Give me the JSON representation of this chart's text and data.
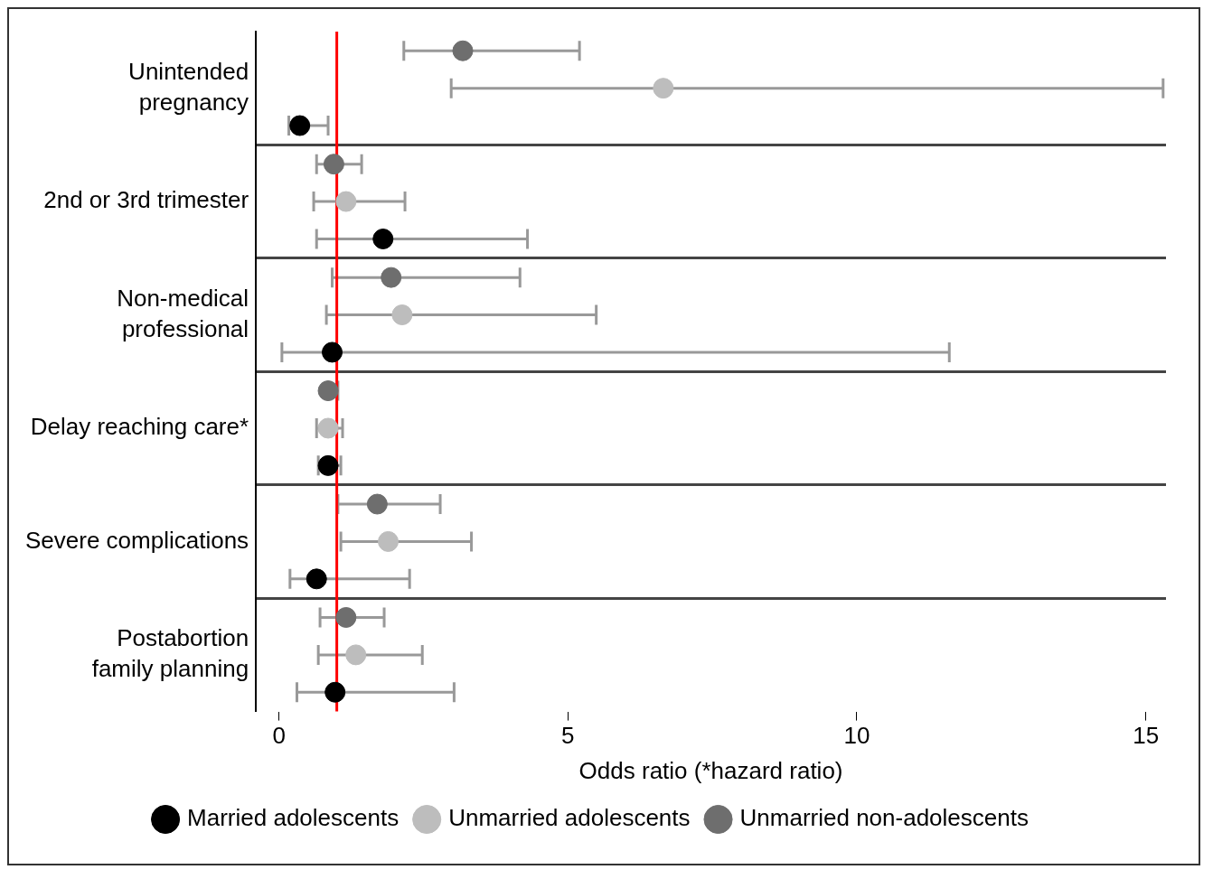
{
  "chart_data": {
    "type": "scatter",
    "orientation": "horizontal",
    "xlabel": "Odds ratio (*hazard ratio)",
    "categories": [
      "Unintended pregnancy",
      "2nd or 3rd trimester",
      "Non-medical professional",
      "Delay reaching care*",
      "Severe complications",
      "Postabortion family planning"
    ],
    "xlim": [
      -0.4,
      15.35
    ],
    "xticks": [
      0,
      5,
      10,
      15
    ],
    "grid": "y",
    "legend": "bottom",
    "marker": "circle",
    "series": [
      {
        "name": "Married adolescents",
        "color": "#000000",
        "values": [
          0.36,
          1.8,
          0.92,
          0.85,
          0.65,
          0.97
        ],
        "errors": [
          [
            0.17,
            0.85
          ],
          [
            0.65,
            4.3
          ],
          [
            0.05,
            11.6
          ],
          [
            0.68,
            1.07
          ],
          [
            0.19,
            2.26
          ],
          [
            0.31,
            3.03
          ]
        ]
      },
      {
        "name": "Unmarried adolescents",
        "color": "#bdbdbd",
        "values": [
          6.65,
          1.16,
          2.13,
          0.85,
          1.89,
          1.33
        ],
        "errors": [
          [
            2.98,
            15.3
          ],
          [
            0.6,
            2.18
          ],
          [
            0.82,
            5.49
          ],
          [
            0.65,
            1.1
          ],
          [
            1.07,
            3.33
          ],
          [
            0.68,
            2.48
          ]
        ]
      },
      {
        "name": "Unmarried non-adolescents",
        "color": "#6e6e6e",
        "values": [
          3.18,
          0.95,
          1.94,
          0.85,
          1.7,
          1.16
        ],
        "errors": [
          [
            2.16,
            5.2
          ],
          [
            0.65,
            1.43
          ],
          [
            0.92,
            4.17
          ],
          [
            0.85,
            1.02
          ],
          [
            1.02,
            2.79
          ],
          [
            0.71,
            1.82
          ]
        ]
      }
    ],
    "ref_lines": [
      {
        "axis": "x",
        "value": 1,
        "color": "#ff0000"
      }
    ]
  }
}
